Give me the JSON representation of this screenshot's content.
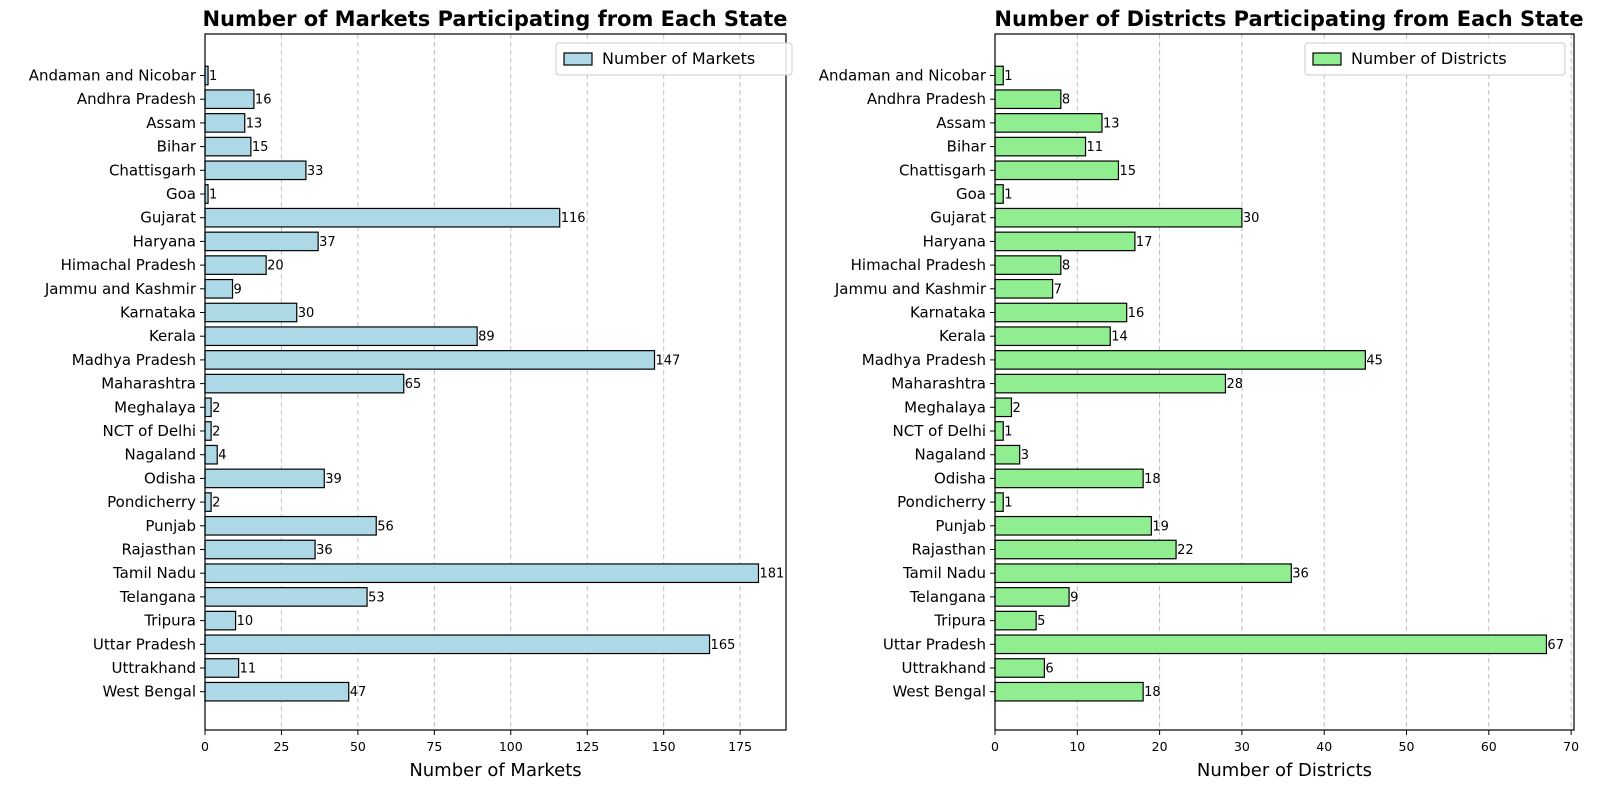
{
  "chart_data": [
    {
      "type": "bar",
      "orientation": "horizontal",
      "title": "Number of Markets Participating from Each State",
      "xlabel": "Number of Markets",
      "ylabel": "",
      "legend": {
        "label": "Number of Markets",
        "placement": "top-right"
      },
      "bar_color": "#add8e6",
      "grid": "x-dashed",
      "xlim": [
        0,
        190
      ],
      "xticks": [
        0,
        25,
        50,
        75,
        100,
        125,
        150,
        175
      ],
      "categories": [
        "Andaman and Nicobar",
        "Andhra Pradesh",
        "Assam",
        "Bihar",
        "Chattisgarh",
        "Goa",
        "Gujarat",
        "Haryana",
        "Himachal Pradesh",
        "Jammu and Kashmir",
        "Karnataka",
        "Kerala",
        "Madhya Pradesh",
        "Maharashtra",
        "Meghalaya",
        "NCT of Delhi",
        "Nagaland",
        "Odisha",
        "Pondicherry",
        "Punjab",
        "Rajasthan",
        "Tamil Nadu",
        "Telangana",
        "Tripura",
        "Uttar Pradesh",
        "Uttrakhand",
        "West Bengal"
      ],
      "values": [
        1,
        16,
        13,
        15,
        33,
        1,
        116,
        37,
        20,
        9,
        30,
        89,
        147,
        65,
        2,
        2,
        4,
        39,
        2,
        56,
        36,
        181,
        53,
        10,
        165,
        11,
        47
      ]
    },
    {
      "type": "bar",
      "orientation": "horizontal",
      "title": "Number of Districts Participating from Each State",
      "xlabel": "Number of Districts",
      "ylabel": "",
      "legend": {
        "label": "Number of Districts",
        "placement": "top-right"
      },
      "bar_color": "#90ee90",
      "grid": "x-dashed",
      "xlim": [
        0,
        70.35
      ],
      "xticks": [
        0,
        10,
        20,
        30,
        40,
        50,
        60,
        70
      ],
      "categories": [
        "Andaman and Nicobar",
        "Andhra Pradesh",
        "Assam",
        "Bihar",
        "Chattisgarh",
        "Goa",
        "Gujarat",
        "Haryana",
        "Himachal Pradesh",
        "Jammu and Kashmir",
        "Karnataka",
        "Kerala",
        "Madhya Pradesh",
        "Maharashtra",
        "Meghalaya",
        "NCT of Delhi",
        "Nagaland",
        "Odisha",
        "Pondicherry",
        "Punjab",
        "Rajasthan",
        "Tamil Nadu",
        "Telangana",
        "Tripura",
        "Uttar Pradesh",
        "Uttrakhand",
        "West Bengal"
      ],
      "values": [
        1,
        8,
        13,
        11,
        15,
        1,
        30,
        17,
        8,
        7,
        16,
        14,
        45,
        28,
        2,
        1,
        3,
        18,
        1,
        19,
        22,
        36,
        9,
        5,
        67,
        6,
        18
      ]
    }
  ]
}
